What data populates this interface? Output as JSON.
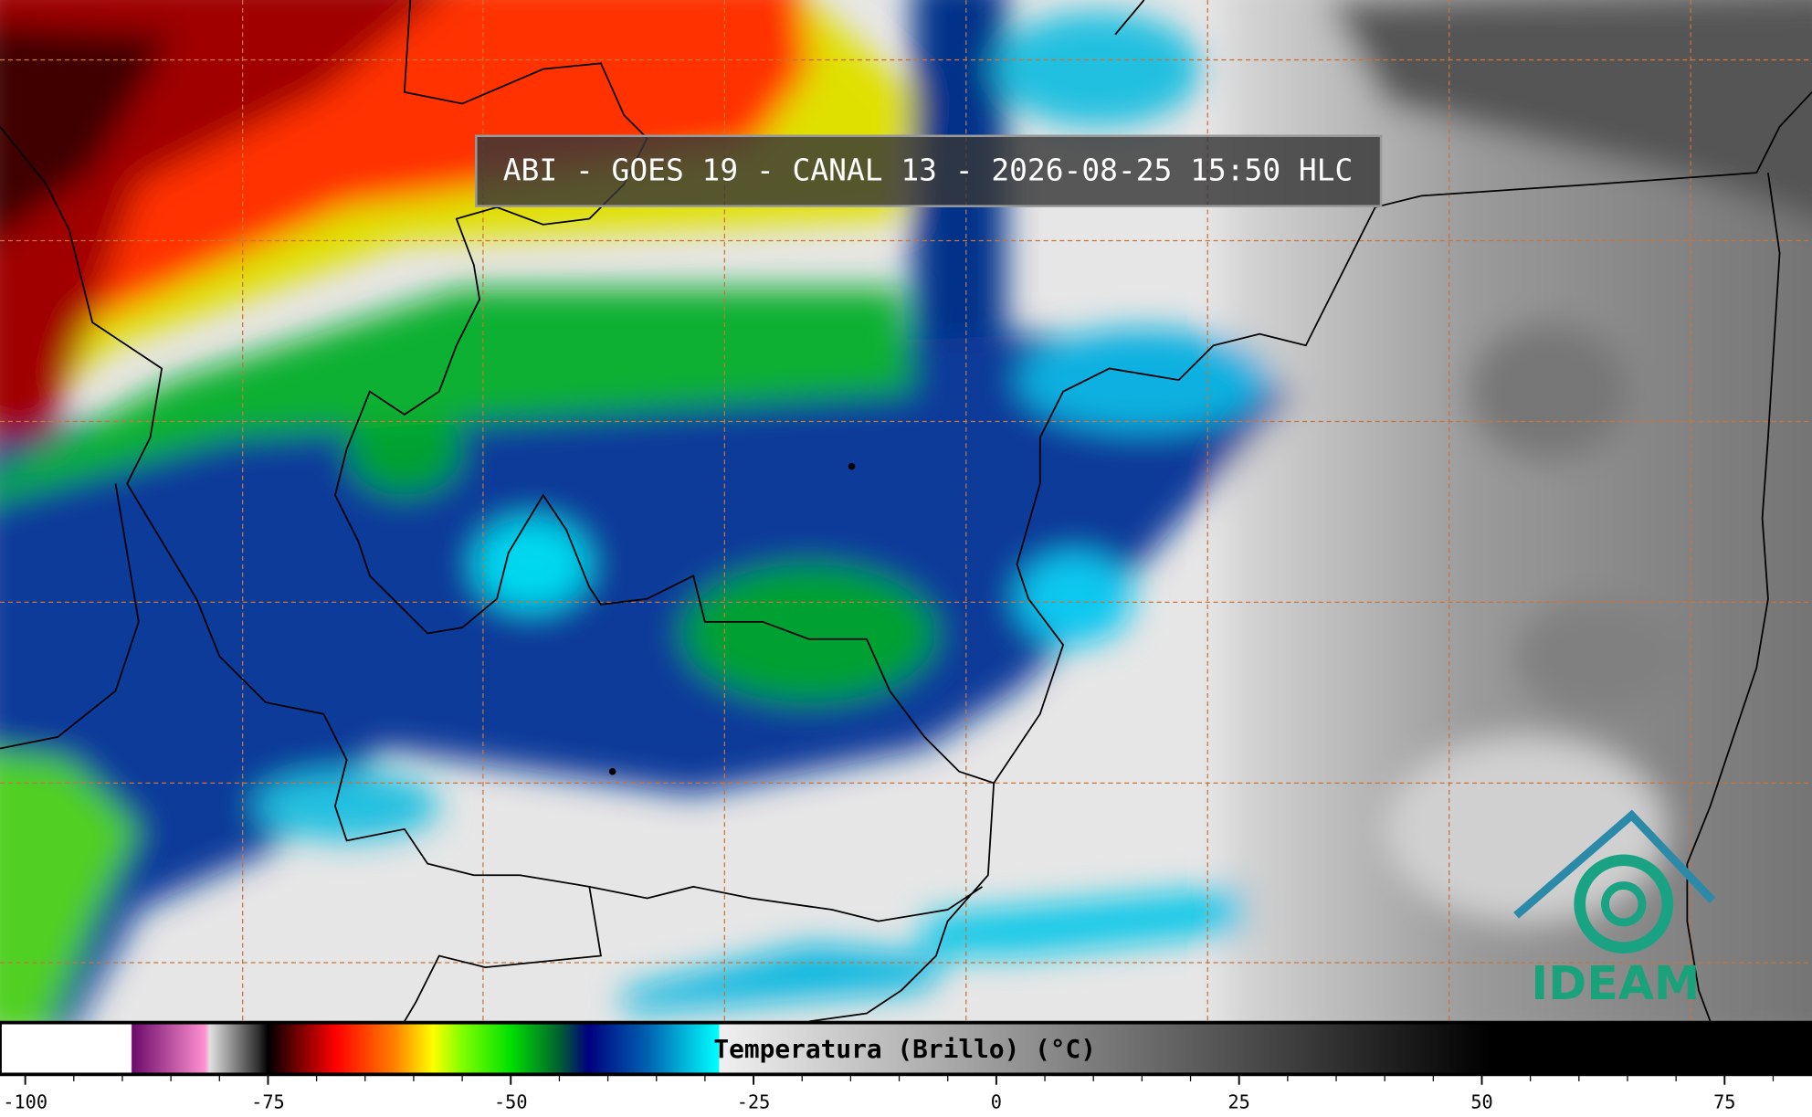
{
  "header": {
    "title": "ABI - GOES 19 - CANAL 13 - 2026-08-25 15:50 HLC"
  },
  "logo": {
    "text": "IDEAM"
  },
  "chart_data": {
    "type": "colorbar",
    "xlabel": "Temperatura (Brillo) (°C)",
    "xlim": [
      -102.6,
      84
    ],
    "xticks": [
      -100,
      -75,
      -50,
      -25,
      0,
      25,
      50,
      75
    ],
    "minor_xticks": [
      -95,
      -90,
      -85,
      -80,
      -70,
      -65,
      -60,
      -55,
      -45,
      -40,
      -35,
      -30,
      -20,
      -15,
      -10,
      -5,
      5,
      10,
      15,
      20,
      30,
      35,
      40,
      45,
      55,
      60,
      65,
      70,
      80
    ],
    "colormap": [
      {
        "value": -102.6,
        "color": "#ffffff"
      },
      {
        "value": -89.1,
        "color": "#ffffff"
      },
      {
        "value": -89,
        "color": "#6a0a6a"
      },
      {
        "value": -81.5,
        "color": "#ff90d0"
      },
      {
        "value": -81,
        "color": "#e0e0e0"
      },
      {
        "value": -76,
        "color": "#303030"
      },
      {
        "value": -75,
        "color": "#000000"
      },
      {
        "value": -72,
        "color": "#700000"
      },
      {
        "value": -68,
        "color": "#ff0000"
      },
      {
        "value": -62,
        "color": "#ff8000"
      },
      {
        "value": -58,
        "color": "#ffff00"
      },
      {
        "value": -55,
        "color": "#80ff00"
      },
      {
        "value": -50,
        "color": "#00e000"
      },
      {
        "value": -45,
        "color": "#006030"
      },
      {
        "value": -42,
        "color": "#000080"
      },
      {
        "value": -36,
        "color": "#0060b0"
      },
      {
        "value": -28.6,
        "color": "#00ffff"
      },
      {
        "value": -28.5,
        "color": "#f0f0f0"
      },
      {
        "value": 51,
        "color": "#000000"
      },
      {
        "value": 84,
        "color": "#000000"
      }
    ]
  }
}
